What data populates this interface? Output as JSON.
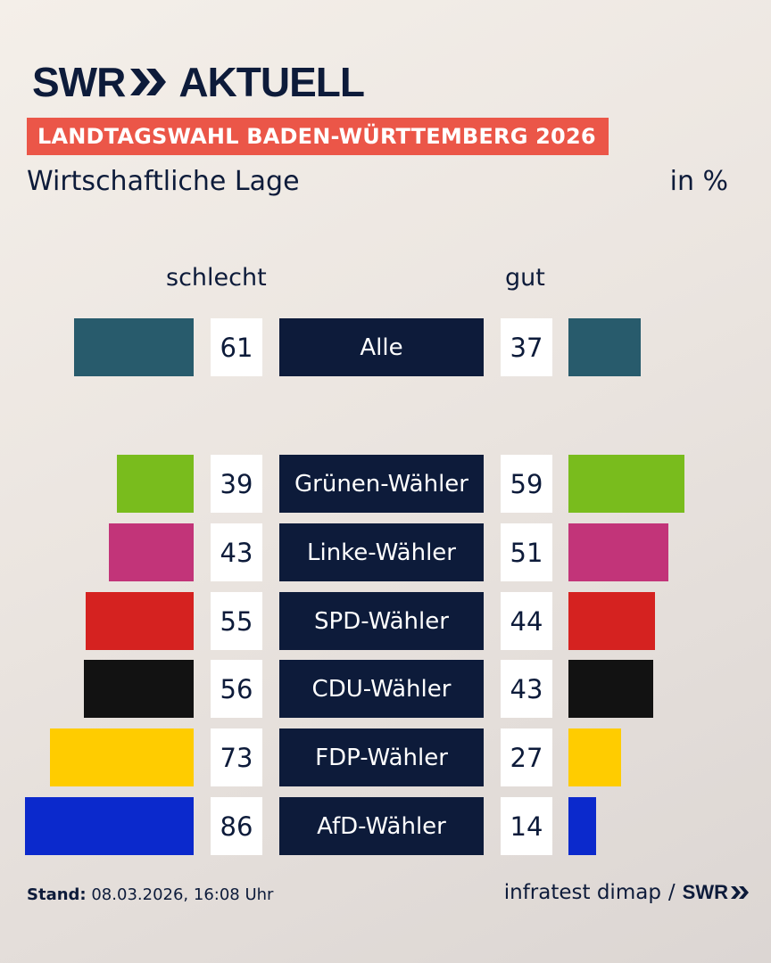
{
  "header": {
    "logo_part1": "SWR",
    "logo_part2": "AKTUELL",
    "banner": "LANDTAGSWAHL BADEN-WÜRTTEMBERG 2026",
    "subtitle": "Wirtschaftliche Lage",
    "unit": "in %"
  },
  "columns": {
    "left": "schlecht",
    "right": "gut"
  },
  "chart_data": {
    "type": "bar",
    "layout": "diverging-horizontal",
    "title": "Wirtschaftliche Lage",
    "unit": "in %",
    "series_names": [
      "schlecht",
      "gut"
    ],
    "rows": [
      {
        "label": "Alle",
        "schlecht": 61,
        "gut": 37,
        "color": "#285b6c"
      },
      {
        "label": "Grünen-Wähler",
        "schlecht": 39,
        "gut": 59,
        "color": "#79bc1d"
      },
      {
        "label": "Linke-Wähler",
        "schlecht": 43,
        "gut": 51,
        "color": "#c23479"
      },
      {
        "label": "SPD-Wähler",
        "schlecht": 55,
        "gut": 44,
        "color": "#d52220"
      },
      {
        "label": "CDU-Wähler",
        "schlecht": 56,
        "gut": 43,
        "color": "#121212"
      },
      {
        "label": "FDP-Wähler",
        "schlecht": 73,
        "gut": 27,
        "color": "#ffcc00"
      },
      {
        "label": "AfD-Wähler",
        "schlecht": 86,
        "gut": 14,
        "color": "#0b29cc"
      }
    ]
  },
  "footer": {
    "stand_label": "Stand:",
    "stand_value": "08.03.2026, 16:08 Uhr",
    "source": "infratest dimap",
    "separator": "/",
    "brand": "SWR"
  },
  "colors": {
    "navy": "#0d1b3a",
    "accent": "#eb5648"
  }
}
